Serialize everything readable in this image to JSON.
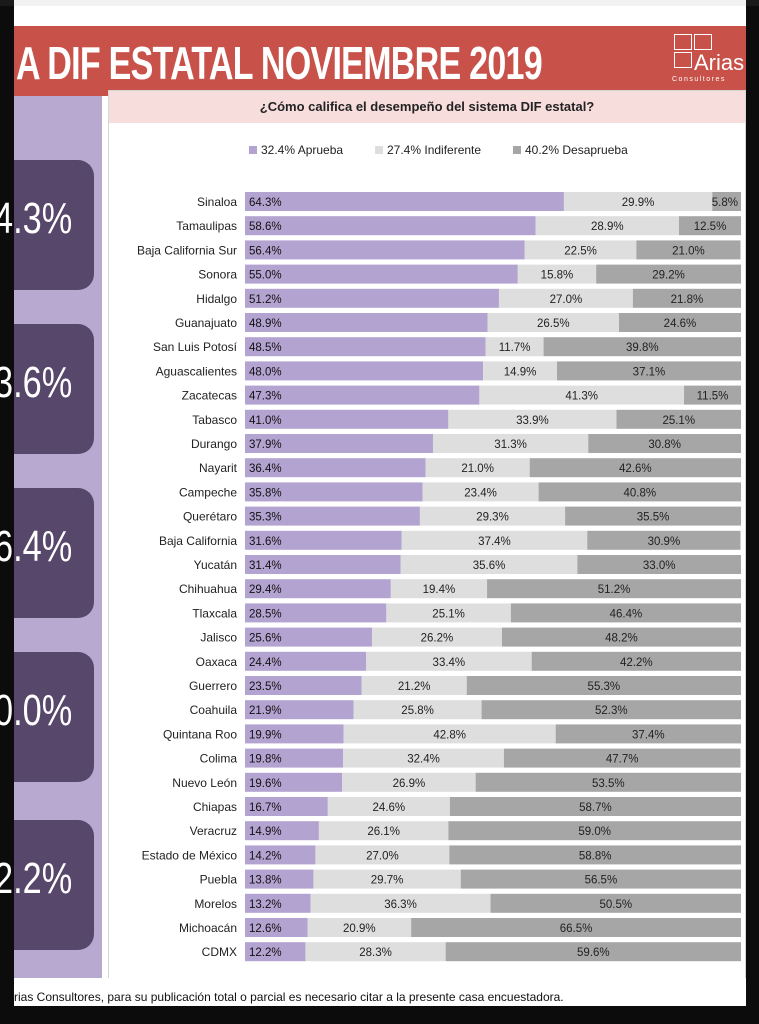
{
  "banner": {
    "title": "A DIF ESTATAL NOVIEMBRE 2019"
  },
  "logo": {
    "name": "Arias",
    "sub": "Consultores"
  },
  "kpis": [
    "4.3%",
    "3.6%",
    "6.4%",
    "0.0%",
    "2.2%"
  ],
  "footer": {
    "text": "rias Consultores, para su publicación total o parcial es necesario citar a la presente casa encuestadora."
  },
  "colors": {
    "aprueba": "#b3a3d0",
    "indiferente": "#dedede",
    "desaprueba": "#a6a6a6",
    "banner": "#c8524a",
    "kpi": "#57476b",
    "sidebar": "#b7a9cf"
  },
  "chart_data": {
    "type": "bar",
    "stacked": true,
    "orientation": "horizontal",
    "title": "¿Cómo califica el desempeño del sistema DIF estatal?",
    "legend": [
      "32.4% Aprueba",
      "27.4% Indiferente",
      "40.2% Desaprueba"
    ],
    "legend_position": "top",
    "categories": [
      "Sinaloa",
      "Tamaulipas",
      "Baja California Sur",
      "Sonora",
      "Hidalgo",
      "Guanajuato",
      "San Luis Potosí",
      "Aguascalientes",
      "Zacatecas",
      "Tabasco",
      "Durango",
      "Nayarit",
      "Campeche",
      "Querétaro",
      "Baja California",
      "Yucatán",
      "Chihuahua",
      "Tlaxcala",
      "Jalisco",
      "Oaxaca",
      "Guerrero",
      "Coahuila",
      "Quintana Roo",
      "Colima",
      "Nuevo León",
      "Chiapas",
      "Veracruz",
      "Estado de México",
      "Puebla",
      "Morelos",
      "Michoacán",
      "CDMX"
    ],
    "series": [
      {
        "values": [
          64.3,
          58.6,
          56.4,
          55.0,
          51.2,
          48.9,
          48.5,
          48.0,
          47.3,
          41.0,
          37.9,
          36.4,
          35.8,
          35.3,
          31.6,
          31.4,
          29.4,
          28.5,
          25.6,
          24.4,
          23.5,
          21.9,
          19.9,
          19.8,
          19.6,
          16.7,
          14.9,
          14.2,
          13.8,
          13.2,
          12.6,
          12.2
        ]
      },
      {
        "values": [
          29.9,
          28.9,
          22.5,
          15.8,
          27.0,
          26.5,
          11.7,
          14.9,
          41.3,
          33.9,
          31.3,
          21.0,
          23.4,
          29.3,
          37.4,
          35.6,
          19.4,
          25.1,
          26.2,
          33.4,
          21.2,
          25.8,
          42.8,
          32.4,
          26.9,
          24.6,
          26.1,
          27.0,
          29.7,
          36.3,
          20.9,
          28.3
        ]
      },
      {
        "values": [
          5.8,
          12.5,
          21.0,
          29.2,
          21.8,
          24.6,
          39.8,
          37.1,
          11.5,
          25.1,
          30.8,
          42.6,
          40.8,
          35.5,
          30.9,
          33.0,
          51.2,
          46.4,
          48.2,
          42.2,
          55.3,
          52.3,
          37.4,
          47.7,
          53.5,
          58.7,
          59.0,
          58.8,
          56.5,
          50.5,
          66.5,
          59.6
        ]
      }
    ],
    "labels": [
      [
        "64.3%",
        "58.6%",
        "56.4%",
        "55.0%",
        "51.2%",
        "48.9%",
        "48.5%",
        "48.0%",
        "47.3%",
        "41.0%",
        "37.9%",
        "36.4%",
        "35.8%",
        "35.3%",
        "31.6%",
        "31.4%",
        "29.4%",
        "28.5%",
        "25.6%",
        "24.4%",
        "23.5%",
        "21.9%",
        "19.9%",
        "19.8%",
        "19.6%",
        "16.7%",
        "14.9%",
        "14.2%",
        "13.8%",
        "13.2%",
        "12.6%",
        "12.2%"
      ],
      [
        "29.9%",
        "28.9%",
        "22.5%",
        "15.8%",
        "27.0%",
        "26.5%",
        "11.7%",
        "14.9%",
        "41.3%",
        "33.9%",
        "31.3%",
        "21.0%",
        "23.4%",
        "29.3%",
        "37.4%",
        "35.6%",
        "19.4%",
        "25.1%",
        "26.2%",
        "33.4%",
        "21.2%",
        "25.8%",
        "42.8%",
        "32.4%",
        "26.9%",
        "24.6%",
        "26.1%",
        "27.0%",
        "29.7%",
        "36.3%",
        "20.9%",
        "28.3%"
      ],
      [
        "5.8%",
        "12.5%",
        "21.0%",
        "29.2%",
        "21.8%",
        "24.6%",
        "39.8%",
        "37.1%",
        "11.5%",
        "25.1%",
        "30.8%",
        "42.6%",
        "40.8%",
        "35.5%",
        "30.9%",
        "33.0%",
        "51.2%",
        "46.4%",
        "48.2%",
        "42.2%",
        "55.3%",
        "52.3%",
        "37.4%",
        "47.7%",
        "53.5%",
        "58.7%",
        "59.0%",
        "58.8%",
        "56.5%",
        "50.5%",
        "66.5%",
        "59.6%"
      ]
    ],
    "xlim": [
      0,
      100
    ],
    "grid": false
  }
}
